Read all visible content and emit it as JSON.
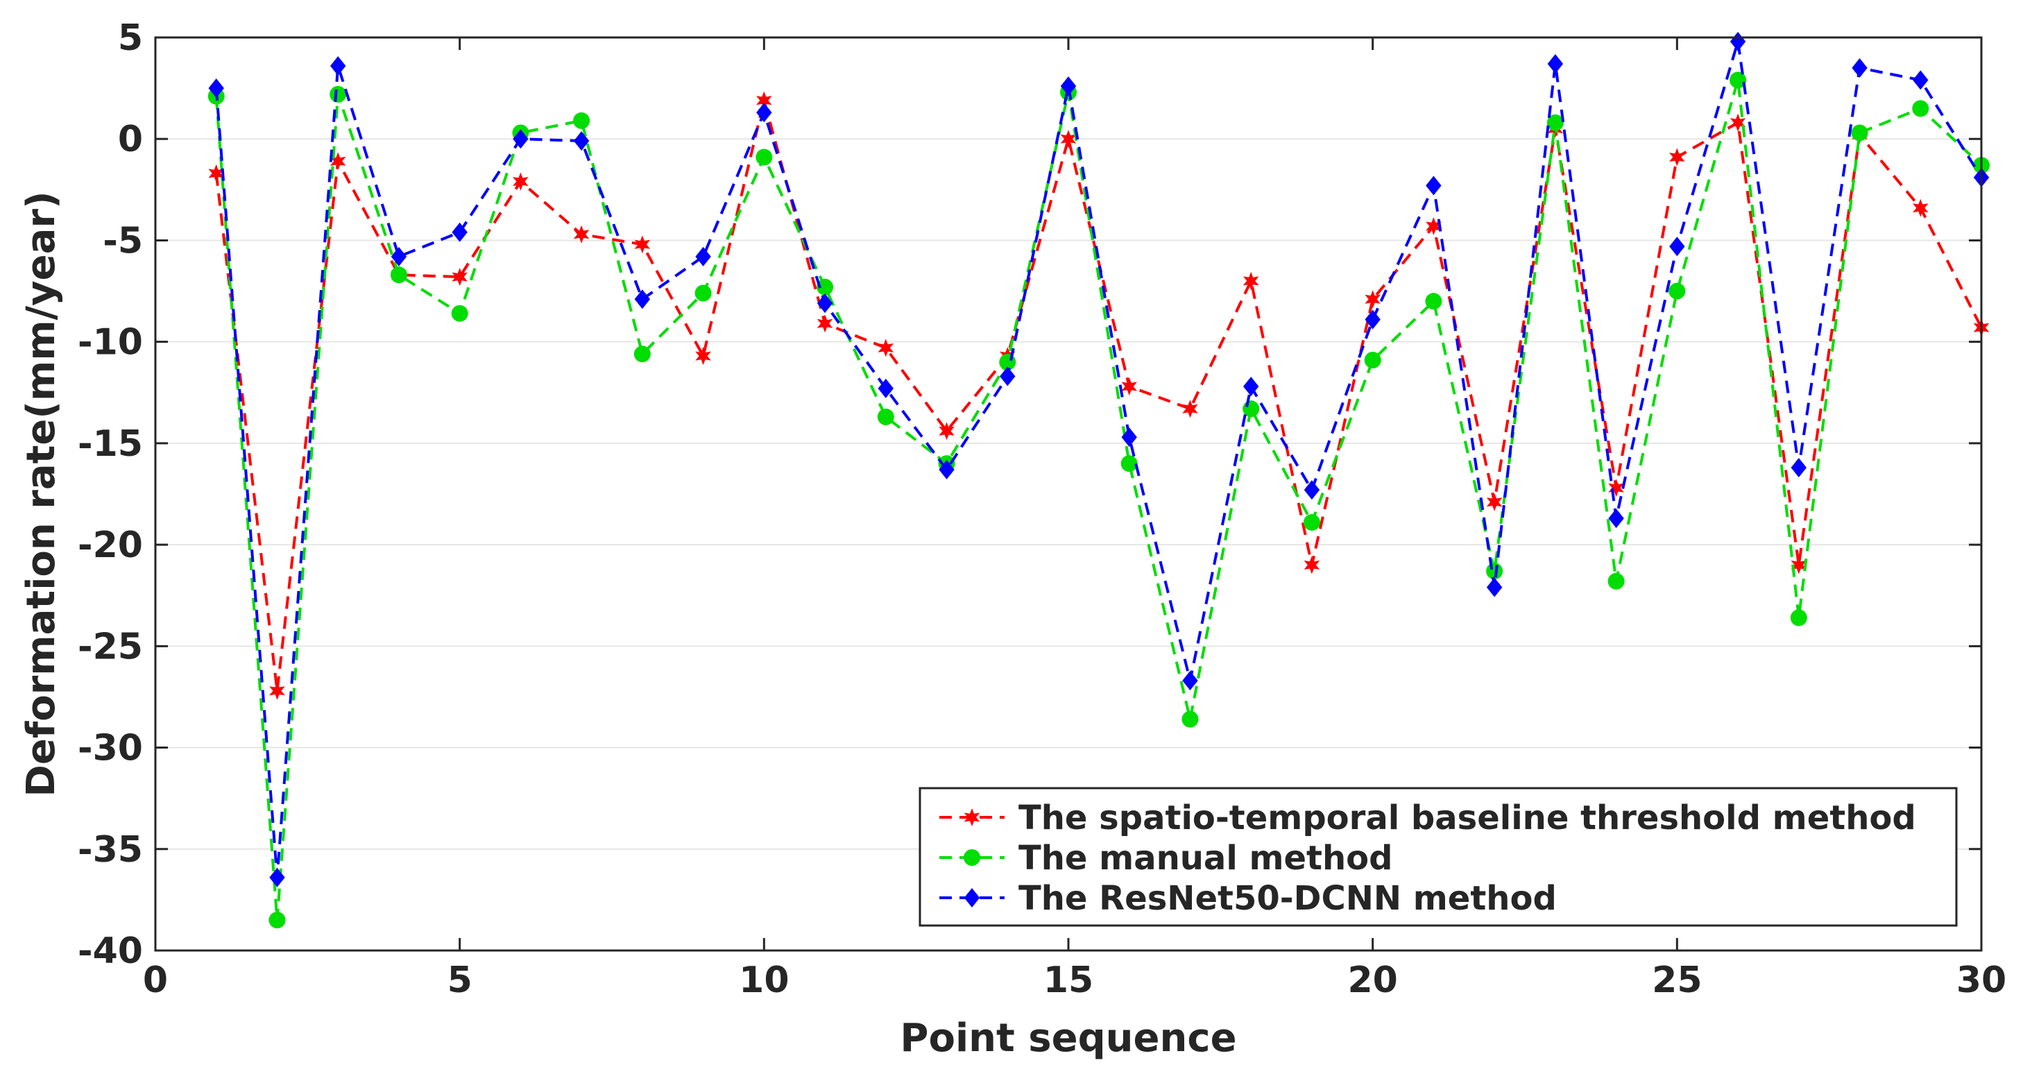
{
  "chart_data": {
    "type": "line",
    "title": "",
    "xlabel": "Point sequence",
    "ylabel": "Deformation rate(mm/year)",
    "xlim": [
      0,
      30
    ],
    "ylim": [
      -40,
      5
    ],
    "xticks": [
      0,
      5,
      10,
      15,
      20,
      25,
      30
    ],
    "yticks": [
      5,
      0,
      -5,
      -10,
      -15,
      -20,
      -25,
      -30,
      -35,
      -40
    ],
    "grid": "horizontal",
    "legend_position": "bottom-right",
    "x": [
      1,
      2,
      3,
      4,
      5,
      6,
      7,
      8,
      9,
      10,
      11,
      12,
      13,
      14,
      15,
      16,
      17,
      18,
      19,
      20,
      21,
      22,
      23,
      24,
      25,
      26,
      27,
      28,
      29,
      30
    ],
    "series": [
      {
        "name": "The spatio-temporal baseline threshold method",
        "color": "#ff0000",
        "marker": "star",
        "values": [
          -1.7,
          -27.2,
          -1.1,
          -6.7,
          -6.8,
          -2.1,
          -4.7,
          -5.2,
          -10.7,
          1.9,
          -9.1,
          -10.3,
          -14.4,
          -10.7,
          0.0,
          -12.2,
          -13.3,
          -7.0,
          -21.0,
          -7.9,
          -4.3,
          -17.9,
          0.5,
          -17.2,
          -0.9,
          0.8,
          -21.0,
          0.2,
          -3.4,
          -9.3
        ]
      },
      {
        "name": "The manual method",
        "color": "#00dd00",
        "marker": "circle",
        "values": [
          2.1,
          -38.5,
          2.2,
          -6.7,
          -8.6,
          0.3,
          0.9,
          -10.6,
          -7.6,
          -0.9,
          -7.3,
          -13.7,
          -16.0,
          -11.0,
          2.3,
          -16.0,
          -28.6,
          -13.3,
          -18.9,
          -10.9,
          -8.0,
          -21.3,
          0.8,
          -21.8,
          -7.5,
          2.9,
          -23.6,
          0.3,
          1.5,
          -1.3
        ]
      },
      {
        "name": "The ResNet50-DCNN method",
        "color": "#0000ff",
        "marker": "diamond",
        "values": [
          2.5,
          -36.4,
          3.6,
          -5.8,
          -4.6,
          0.0,
          -0.1,
          -7.9,
          -5.8,
          1.3,
          -8.1,
          -12.3,
          -16.3,
          -11.7,
          2.6,
          -14.7,
          -26.7,
          -12.2,
          -17.3,
          -8.9,
          -2.3,
          -22.1,
          3.7,
          -18.7,
          -5.3,
          4.8,
          -16.2,
          3.5,
          2.9,
          -1.9
        ]
      }
    ]
  }
}
